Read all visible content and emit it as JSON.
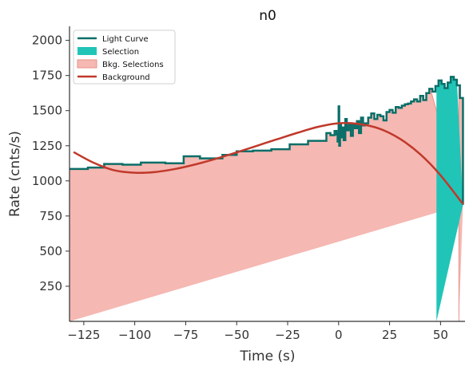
{
  "chart_data": {
    "type": "line",
    "title": "n0",
    "xlabel": "Time (s)",
    "ylabel": "Rate (cnts/s)",
    "xlim": [
      -132,
      62
    ],
    "ylim": [
      0,
      2100
    ],
    "xticks": [
      -125,
      -100,
      -75,
      -50,
      -25,
      0,
      25,
      50
    ],
    "xtick_labels": [
      "−125",
      "−100",
      "−75",
      "−50",
      "−25",
      "0",
      "25",
      "50"
    ],
    "yticks": [
      250,
      500,
      750,
      1000,
      1250,
      1500,
      1750,
      2000
    ],
    "ytick_labels": [
      "250",
      "500",
      "750",
      "1000",
      "1250",
      "1500",
      "1750",
      "2000"
    ],
    "grid": false,
    "legend_position": "top-left",
    "colors": {
      "light_curve": "#0b6e68",
      "selection": "#20c5b8",
      "bkg_selection": "#f5b8b2",
      "bkg_selection_edge": "#e8928a",
      "background": "#c0392b"
    },
    "legend": [
      {
        "label": "Light Curve",
        "kind": "line",
        "color": "#0b6e68"
      },
      {
        "label": "Selection",
        "kind": "patch",
        "color": "#20c5b8"
      },
      {
        "label": "Bkg. Selections",
        "kind": "patch",
        "color": "#f5b8b2"
      },
      {
        "label": "Background",
        "kind": "line",
        "color": "#c0392b"
      }
    ],
    "light_curve": {
      "name": "Light Curve",
      "edges": [
        -132,
        -123,
        -115,
        -106,
        -97,
        -85,
        -76,
        -68,
        -57,
        -50,
        -42,
        -33,
        -24,
        -15,
        -6,
        -4,
        -2,
        -1,
        -0.5,
        0,
        0.3,
        0.7,
        1.2,
        1.8,
        2.5,
        3.3,
        4,
        5,
        6,
        7,
        8,
        9,
        10,
        11,
        12,
        13,
        14.5,
        16,
        17.5,
        19,
        20.5,
        22,
        23.5,
        25,
        26.5,
        28,
        29.5,
        31,
        32.5,
        34,
        35.5,
        37,
        38.5,
        40,
        41.5,
        43,
        44.5,
        46,
        47.5,
        49,
        50.5,
        52,
        53.5,
        55,
        56.5,
        58,
        59.5,
        61
      ],
      "rates": [
        1085,
        1095,
        1120,
        1115,
        1130,
        1125,
        1175,
        1160,
        1185,
        1210,
        1215,
        1225,
        1260,
        1285,
        1340,
        1325,
        1355,
        1330,
        1280,
        1530,
        1250,
        1400,
        1310,
        1380,
        1290,
        1440,
        1360,
        1410,
        1320,
        1405,
        1375,
        1425,
        1340,
        1450,
        1395,
        1410,
        1450,
        1480,
        1440,
        1470,
        1460,
        1430,
        1490,
        1505,
        1485,
        1525,
        1520,
        1535,
        1545,
        1550,
        1565,
        1580,
        1565,
        1605,
        1575,
        1625,
        1655,
        1635,
        1675,
        1715,
        1690,
        1660,
        1700,
        1740,
        1720,
        1680,
        1590,
        830
      ]
    },
    "selection": {
      "name": "Selection",
      "range": [
        48,
        58
      ]
    },
    "bkg_selections": {
      "name": "Bkg. Selections",
      "ranges": [
        [
          -132,
          45
        ],
        [
          59,
          62
        ]
      ]
    },
    "background": {
      "name": "Background",
      "x": [
        -130,
        -120,
        -110,
        -100,
        -90,
        -80,
        -70,
        -60,
        -50,
        -40,
        -30,
        -20,
        -10,
        0,
        10,
        20,
        30,
        40,
        50,
        61
      ],
      "y": [
        1205,
        1128,
        1075,
        1058,
        1063,
        1085,
        1118,
        1158,
        1203,
        1250,
        1297,
        1343,
        1385,
        1410,
        1405,
        1372,
        1300,
        1190,
        1040,
        835
      ]
    }
  }
}
